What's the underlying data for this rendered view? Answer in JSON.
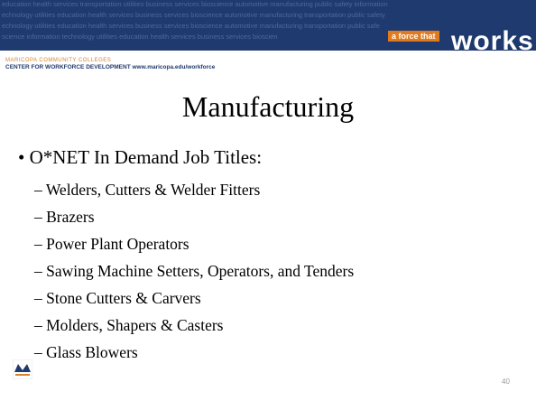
{
  "header": {
    "banner_lines": [
      "education health services transportation utilities business services bioscience automotive manufacturing public safety information",
      "echnology utilities education health services business services bioscience automotive manufacturing transportation public safety",
      "echnology utilities education health services business services bioscience automotive manufacturing transportation public safe",
      "science information technology utilities education health services business services bioscien"
    ],
    "tagline": "a force that",
    "logo_word": "works",
    "college": "MARICOPA COMMUNITY COLLEGES",
    "center": "CENTER FOR WORKFORCE DEVELOPMENT www.maricopa.edu/workforce"
  },
  "slide": {
    "title": "Manufacturing",
    "bullet": "O*NET In Demand Job Titles:",
    "items": [
      "Welders, Cutters & Welder Fitters",
      "Brazers",
      "Power Plant Operators",
      "Sawing Machine Setters, Operators, and Tenders",
      "Stone Cutters & Carvers",
      "Molders, Shapers & Casters",
      "Glass Blowers"
    ],
    "page_number": "40"
  }
}
